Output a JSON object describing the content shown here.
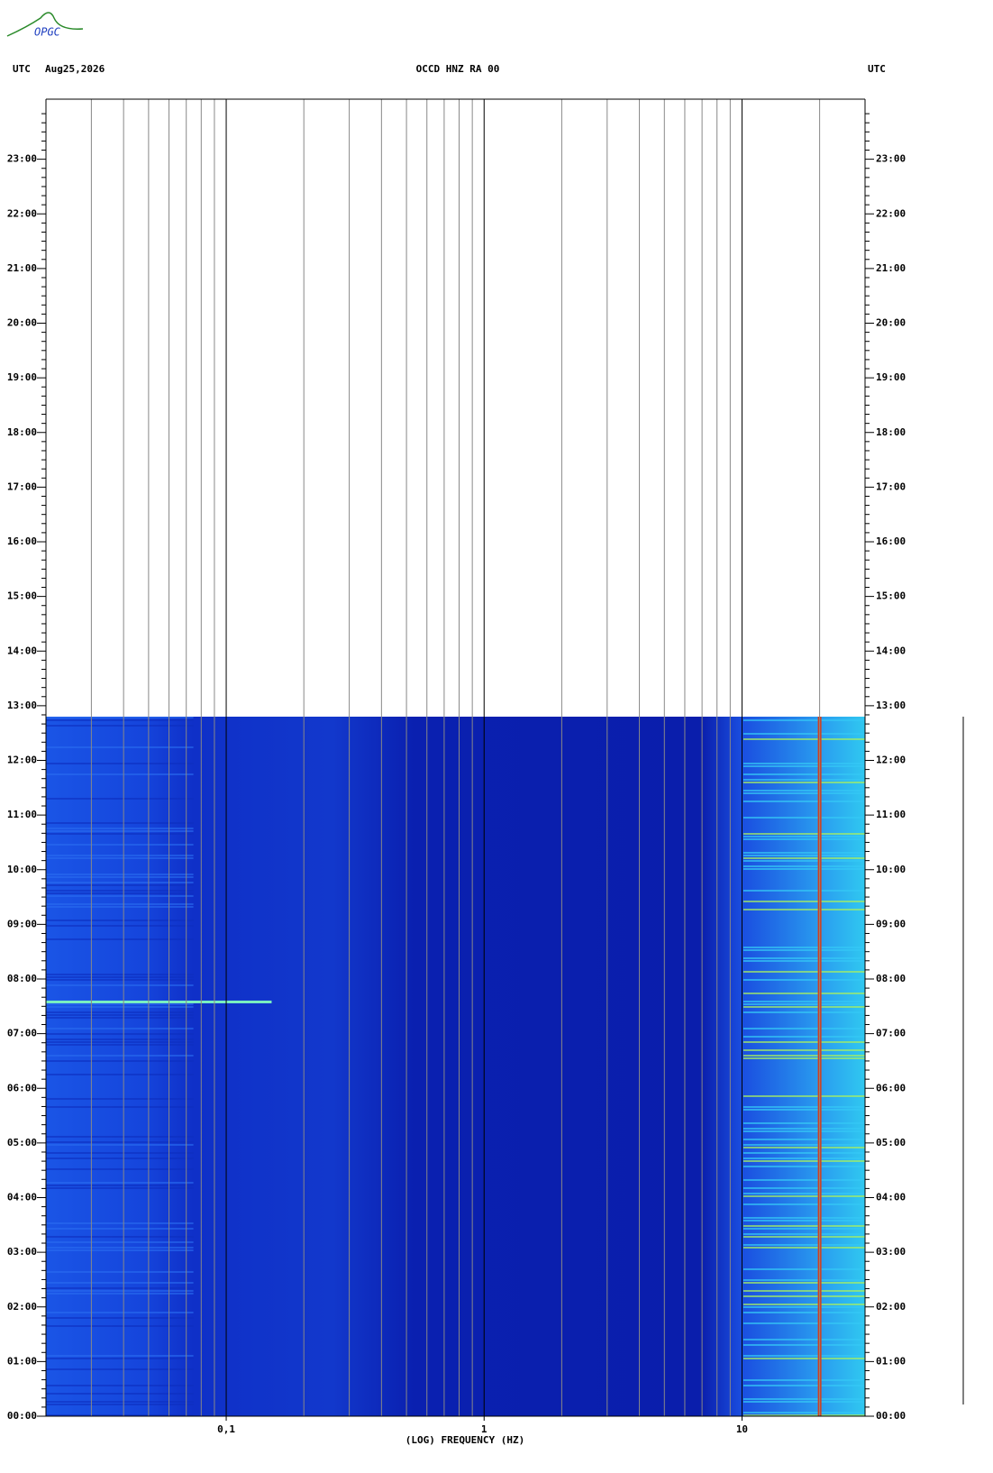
{
  "chart_data": {
    "type": "spectrogram",
    "logo": "OPGC",
    "header_left": "UTC",
    "date": "Aug25,2026",
    "title": "OCCD HNZ RA 00",
    "header_right": "UTC",
    "xlabel": "(LOG) FREQUENCY (HZ)",
    "xscale": "log",
    "xlim": [
      0.02,
      30
    ],
    "xticks": [
      {
        "value": 0.1,
        "label": "0,1"
      },
      1,
      10
    ],
    "xgrid": [
      0.03,
      0.04,
      0.05,
      0.06,
      0.07,
      0.08,
      0.09,
      0.1,
      0.2,
      0.3,
      0.4,
      0.5,
      0.6,
      0.7,
      0.8,
      0.9,
      1,
      2,
      3,
      4,
      5,
      6,
      7,
      8,
      9,
      10,
      20
    ],
    "ylim": [
      0,
      24
    ],
    "yticks": [
      {
        "value": 0,
        "label": "00:00"
      },
      {
        "value": 1,
        "label": "01:00"
      },
      {
        "value": 2,
        "label": "02:00"
      },
      {
        "value": 3,
        "label": "03:00"
      },
      {
        "value": 4,
        "label": "04:00"
      },
      {
        "value": 5,
        "label": "05:00"
      },
      {
        "value": 6,
        "label": "06:00"
      },
      {
        "value": 7,
        "label": "07:00"
      },
      {
        "value": 8,
        "label": "08:00"
      },
      {
        "value": 9,
        "label": "09:00"
      },
      {
        "value": 10,
        "label": "10:00"
      },
      {
        "value": 11,
        "label": "11:00"
      },
      {
        "value": 12,
        "label": "12:00"
      },
      {
        "value": 13,
        "label": "13:00"
      },
      {
        "value": 14,
        "label": "14:00"
      },
      {
        "value": 15,
        "label": "15:00"
      },
      {
        "value": 16,
        "label": "16:00"
      },
      {
        "value": 17,
        "label": "17:00"
      },
      {
        "value": 18,
        "label": "18:00"
      },
      {
        "value": 19,
        "label": "19:00"
      },
      {
        "value": 20,
        "label": "20:00"
      },
      {
        "value": 21,
        "label": "21:00"
      },
      {
        "value": 22,
        "label": "22:00"
      },
      {
        "value": 23,
        "label": "23:00"
      }
    ],
    "data_end_time": 12.8,
    "spectral_line_hz": 20,
    "event_time": 7.58,
    "event_max_hz": 0.15
  }
}
